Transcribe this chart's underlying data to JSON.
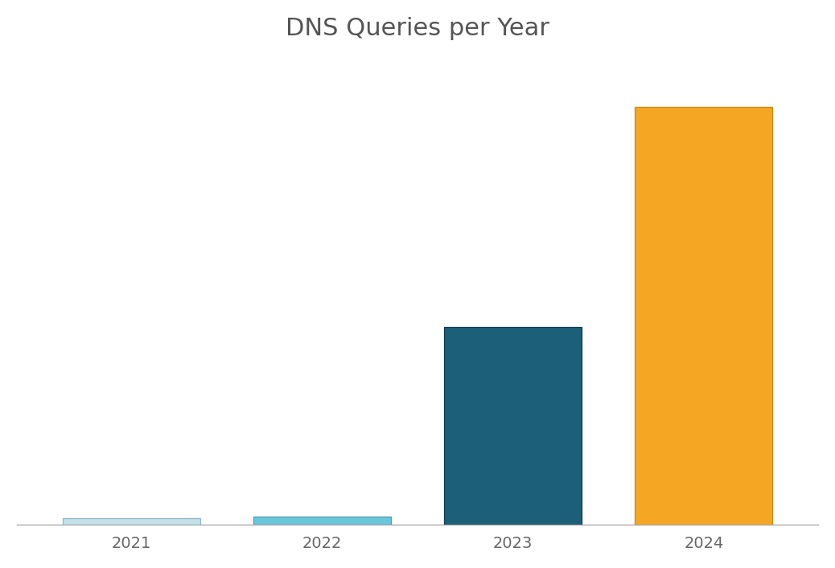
{
  "title": "DNS Queries per Year",
  "categories": [
    "2021",
    "2022",
    "2023",
    "2024"
  ],
  "values": [
    1.5,
    2.0,
    46,
    97
  ],
  "bar_colors": [
    "#c5dfe8",
    "#6bc5db",
    "#1c5f78",
    "#f5a623"
  ],
  "bar_edge_colors": [
    "#8ab8cc",
    "#4a9db5",
    "#0d3d50",
    "#c88a10"
  ],
  "background_color": "#ffffff",
  "grid_color": "#d8d8d8",
  "title_color": "#555555",
  "title_fontsize": 22,
  "tick_fontsize": 14,
  "tick_color": "#666666",
  "ylim": [
    0,
    108
  ],
  "bar_width": 0.72
}
